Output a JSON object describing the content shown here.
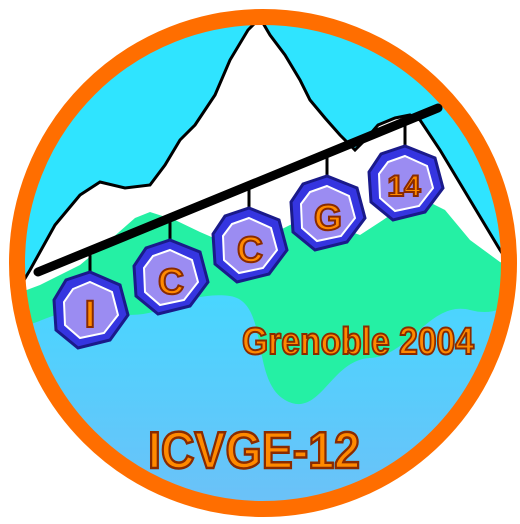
{
  "logo": {
    "gondolas": [
      {
        "letter": "I"
      },
      {
        "letter": "C"
      },
      {
        "letter": "C"
      },
      {
        "letter": "G"
      },
      {
        "letter": "14"
      }
    ],
    "subtitle": "Grenoble 2004",
    "footer": "ICVGE-12"
  },
  "colors": {
    "ring": "#ff6e00",
    "sky": "#2fe4ff",
    "hill": "#25f0a4",
    "water": "#59c9ff",
    "cable": "#000000",
    "gondola_frame": "#3535e0",
    "letter_fill": "#ff8a00",
    "letter_outline": "#8a2b00"
  },
  "icons": [
    "mountain-icon",
    "cable-car-icon"
  ]
}
